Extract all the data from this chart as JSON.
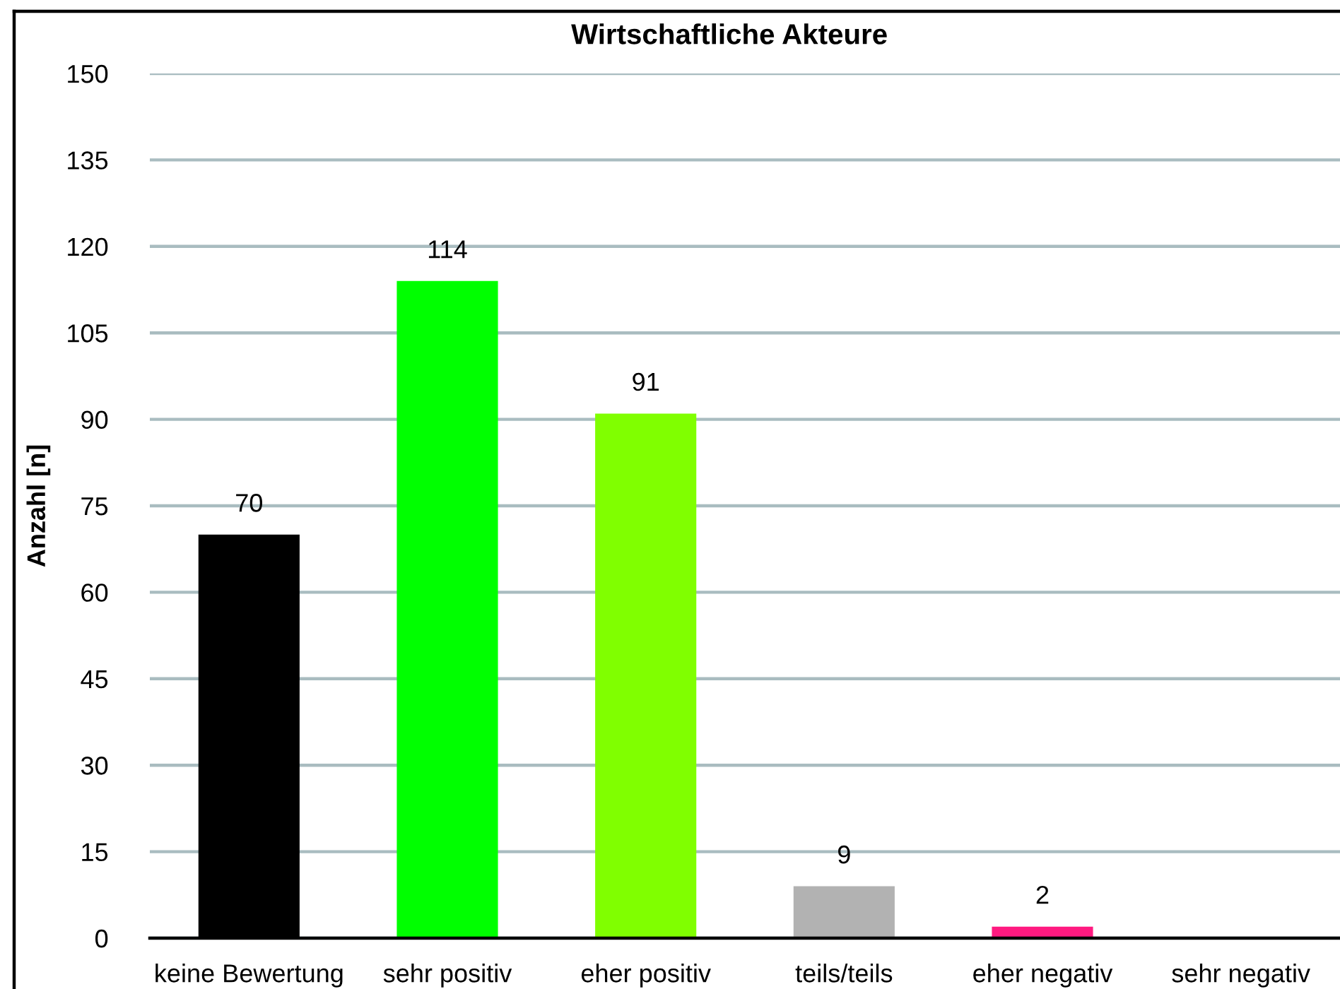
{
  "chart_data": {
    "type": "bar",
    "title": "Wirtschaftliche Akteure",
    "ylabel": "Anzahl [n]",
    "categories": [
      "keine Bewertung",
      "sehr positiv",
      "eher positiv",
      "teils/teils",
      "eher negativ",
      "sehr negativ"
    ],
    "values": [
      70,
      114,
      91,
      9,
      2,
      0
    ],
    "colors": [
      "#000000",
      "#00ff00",
      "#80ff00",
      "#b2b2b2",
      "#ff1a80",
      "#c00000"
    ],
    "value_labels": [
      "70",
      "114",
      "91",
      "9",
      "2",
      null
    ],
    "ylim": [
      0,
      150
    ],
    "yticks": [
      0,
      15,
      30,
      45,
      60,
      75,
      90,
      105,
      120,
      135,
      150
    ],
    "grid": "y"
  }
}
